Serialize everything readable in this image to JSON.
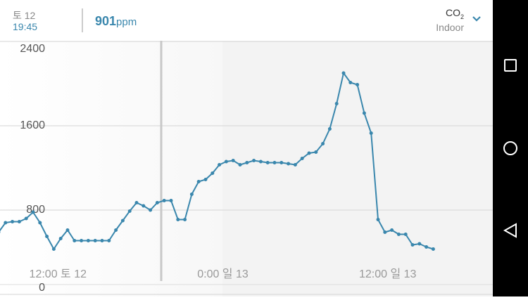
{
  "header": {
    "day": "토 12",
    "time": "19:45",
    "reading": "901",
    "unit": "ppm",
    "metric": "CO",
    "metric_sub": "2",
    "location": "Indoor"
  },
  "chart_data": {
    "type": "line",
    "color": "#3a87ad",
    "values": [
      590,
      680,
      690,
      690,
      720,
      780,
      680,
      550,
      430,
      530,
      610,
      510,
      510,
      510,
      510,
      510,
      510,
      610,
      700,
      790,
      870,
      840,
      800,
      870,
      890,
      890,
      710,
      710,
      950,
      1070,
      1090,
      1150,
      1230,
      1260,
      1270,
      1230,
      1250,
      1270,
      1260,
      1250,
      1250,
      1250,
      1240,
      1230,
      1290,
      1340,
      1350,
      1430,
      1570,
      1810,
      2100,
      2010,
      1990,
      1720,
      1530,
      710,
      590,
      610,
      570,
      570,
      470,
      480,
      450,
      430
    ],
    "ylim": [
      0,
      2400
    ],
    "yticks": [
      0,
      800,
      1600,
      2400
    ],
    "xticks": [
      {
        "value": 8.6,
        "label": "12:00 토 12"
      },
      {
        "value": 32.5,
        "label": "0:00 일 13"
      },
      {
        "value": 56.4,
        "label": "12:00 일 13"
      }
    ],
    "grid": true
  }
}
